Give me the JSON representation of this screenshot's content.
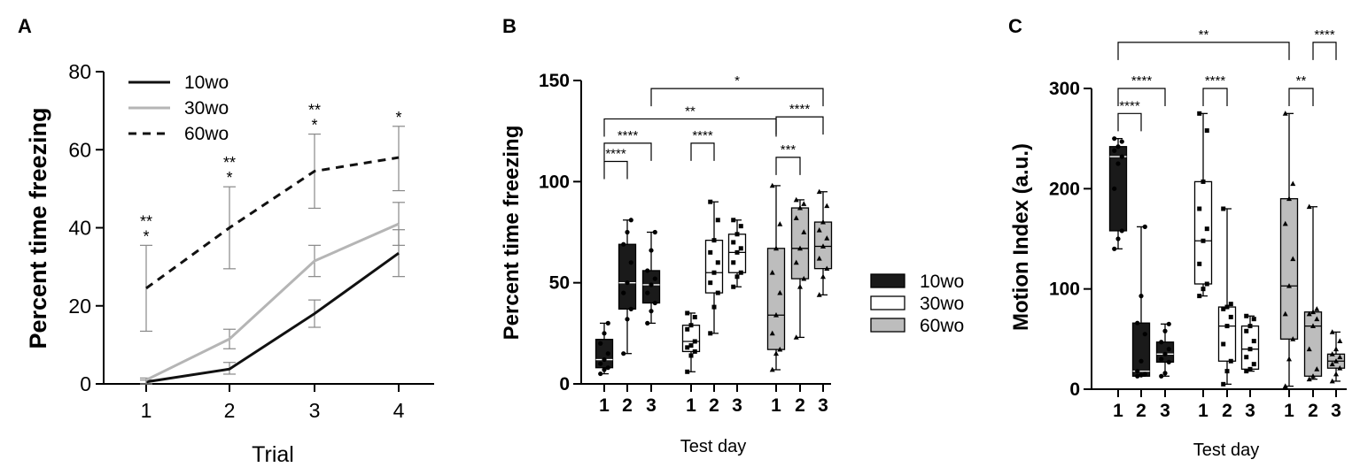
{
  "figure": {
    "panels": [
      "A",
      "B",
      "C"
    ]
  },
  "colors": {
    "10wo": "#1a1a1a",
    "30wo": "#ffffff",
    "60wo": "#bdbdbd",
    "line_30wo": "#b5b5b5",
    "errorbar": "#888888"
  },
  "chart_data": [
    {
      "panel": "A",
      "type": "line",
      "xlabel": "Trial",
      "ylabel": "Percent time freezing",
      "x": [
        1,
        2,
        3,
        4
      ],
      "xticks": [
        "1",
        "2",
        "3",
        "4"
      ],
      "ylim": [
        0,
        80
      ],
      "yticks": [
        "0",
        "20",
        "40",
        "60",
        "80"
      ],
      "legend": [
        "10wo",
        "30wo",
        "60wo"
      ],
      "legend_position": "top-left",
      "series": [
        {
          "name": "10wo",
          "style": "solid-black",
          "values": [
            0.5,
            3.8,
            18,
            33.5
          ],
          "err_low": [
            0,
            2.5,
            14.5,
            27.5
          ],
          "err_high": [
            1,
            5.5,
            21.5,
            39.5
          ]
        },
        {
          "name": "30wo",
          "style": "solid-gray",
          "values": [
            1,
            11.5,
            31.5,
            41
          ],
          "err_low": [
            0,
            9,
            27.5,
            35.5
          ],
          "err_high": [
            1.5,
            14,
            35.5,
            46.5
          ]
        },
        {
          "name": "60wo",
          "style": "dashed-black",
          "values": [
            24.5,
            40,
            54.5,
            58
          ],
          "err_low": [
            13.5,
            29.5,
            45,
            49.5
          ],
          "err_high": [
            35.5,
            50.5,
            64,
            66
          ]
        }
      ],
      "annotations": [
        {
          "x": 1,
          "lines": [
            "**",
            "*"
          ]
        },
        {
          "x": 2,
          "lines": [
            "**",
            "*"
          ]
        },
        {
          "x": 3,
          "lines": [
            "**",
            "*"
          ]
        },
        {
          "x": 4,
          "lines": [
            "*"
          ]
        }
      ]
    },
    {
      "panel": "B",
      "type": "box",
      "xlabel": "Test day",
      "ylabel": "Percent time freezing",
      "ylim": [
        0,
        150
      ],
      "yticks": [
        "0",
        "50",
        "100",
        "150"
      ],
      "legend": [
        "10wo",
        "30wo",
        "60wo"
      ],
      "legend_position": "right",
      "groups": [
        {
          "name": "10wo",
          "boxes": [
            {
              "day": "1",
              "whisker_low": 5,
              "q1": 8,
              "median": 12,
              "q3": 22,
              "whisker_high": 30,
              "points": [
                5,
                7,
                8,
                10,
                12,
                15,
                20,
                25,
                30
              ]
            },
            {
              "day": "2",
              "whisker_low": 15,
              "q1": 37,
              "median": 50,
              "q3": 69,
              "whisker_high": 81,
              "points": [
                15,
                32,
                37,
                45,
                50,
                60,
                69,
                75,
                81
              ]
            },
            {
              "day": "3",
              "whisker_low": 30,
              "q1": 40,
              "median": 49,
              "q3": 56,
              "whisker_high": 75,
              "points": [
                30,
                36,
                40,
                45,
                49,
                52,
                56,
                66,
                75
              ]
            }
          ]
        },
        {
          "name": "30wo",
          "boxes": [
            {
              "day": "1",
              "whisker_low": 6,
              "q1": 16,
              "median": 21,
              "q3": 29,
              "whisker_high": 35,
              "points": [
                6,
                14,
                16,
                18,
                19,
                21,
                27,
                29,
                33,
                35
              ]
            },
            {
              "day": "2",
              "whisker_low": 25,
              "q1": 45,
              "median": 55,
              "q3": 71,
              "whisker_high": 90,
              "points": [
                25,
                38,
                45,
                50,
                55,
                60,
                65,
                71,
                81,
                90
              ]
            },
            {
              "day": "3",
              "whisker_low": 48,
              "q1": 55,
              "median": 65,
              "q3": 74,
              "whisker_high": 81,
              "points": [
                48,
                53,
                55,
                60,
                65,
                67,
                70,
                74,
                78,
                81
              ]
            }
          ]
        },
        {
          "name": "60wo",
          "boxes": [
            {
              "day": "1",
              "whisker_low": 7,
              "q1": 17,
              "median": 34,
              "q3": 67,
              "whisker_high": 98,
              "points": [
                7,
                15,
                17,
                25,
                34,
                45,
                55,
                67,
                79,
                98
              ]
            },
            {
              "day": "2",
              "whisker_low": 23,
              "q1": 52,
              "median": 67,
              "q3": 87,
              "whisker_high": 91,
              "points": [
                23,
                48,
                52,
                60,
                67,
                75,
                82,
                87,
                89,
                91
              ]
            },
            {
              "day": "3",
              "whisker_low": 44,
              "q1": 57,
              "median": 68,
              "q3": 80,
              "whisker_high": 95,
              "points": [
                44,
                53,
                57,
                62,
                68,
                72,
                76,
                80,
                88,
                95
              ]
            }
          ]
        }
      ],
      "significance": [
        {
          "from": 0,
          "to": 1,
          "level": 110,
          "label": "****"
        },
        {
          "from": 0,
          "to": 2,
          "level": 119,
          "label": "****"
        },
        {
          "from": 3,
          "to": 4,
          "level": 119,
          "label": "****"
        },
        {
          "from": 6,
          "to": 7,
          "level": 112,
          "label": "***"
        },
        {
          "from": 6,
          "to": 8,
          "level": 132,
          "label": "****"
        },
        {
          "from": 0,
          "to": 6,
          "level": 131,
          "label": "**"
        },
        {
          "from": 2,
          "to": 8,
          "level": 146,
          "label": "*"
        }
      ]
    },
    {
      "panel": "C",
      "type": "box",
      "xlabel": "Test day",
      "ylabel": "Motion Index (a.u.)",
      "ylim": [
        0,
        300
      ],
      "yticks": [
        "0",
        "100",
        "200",
        "300"
      ],
      "groups": [
        {
          "name": "10wo",
          "boxes": [
            {
              "day": "1",
              "whisker_low": 140,
              "q1": 158,
              "median": 232,
              "q3": 242,
              "whisker_high": 250,
              "points": [
                140,
                150,
                158,
                200,
                225,
                232,
                238,
                242,
                247,
                250
              ]
            },
            {
              "day": "2",
              "whisker_low": 13,
              "q1": 13,
              "median": 18,
              "q3": 66,
              "whisker_high": 162,
              "points": [
                13,
                14,
                15,
                18,
                28,
                55,
                66,
                93,
                162
              ]
            },
            {
              "day": "3",
              "whisker_low": 13,
              "q1": 27,
              "median": 35,
              "q3": 47,
              "whisker_high": 65,
              "points": [
                13,
                16,
                27,
                30,
                35,
                40,
                47,
                58,
                65
              ]
            }
          ]
        },
        {
          "name": "30wo",
          "boxes": [
            {
              "day": "1",
              "whisker_low": 93,
              "q1": 105,
              "median": 148,
              "q3": 207,
              "whisker_high": 275,
              "points": [
                93,
                100,
                105,
                125,
                148,
                160,
                180,
                207,
                258,
                275
              ]
            },
            {
              "day": "2",
              "whisker_low": 5,
              "q1": 28,
              "median": 63,
              "q3": 82,
              "whisker_high": 180,
              "points": [
                5,
                18,
                28,
                45,
                63,
                72,
                80,
                82,
                85,
                180
              ]
            },
            {
              "day": "3",
              "whisker_low": 18,
              "q1": 20,
              "median": 40,
              "q3": 63,
              "whisker_high": 73,
              "points": [
                18,
                20,
                25,
                32,
                40,
                48,
                58,
                63,
                70,
                73
              ]
            }
          ]
        },
        {
          "name": "60wo",
          "boxes": [
            {
              "day": "1",
              "whisker_low": 3,
              "q1": 50,
              "median": 103,
              "q3": 190,
              "whisker_high": 275,
              "points": [
                3,
                30,
                50,
                75,
                103,
                130,
                165,
                190,
                205,
                275
              ]
            },
            {
              "day": "2",
              "whisker_low": 10,
              "q1": 13,
              "median": 63,
              "q3": 77,
              "whisker_high": 182,
              "points": [
                10,
                13,
                20,
                40,
                63,
                70,
                75,
                77,
                80,
                182
              ]
            },
            {
              "day": "3",
              "whisker_low": 8,
              "q1": 21,
              "median": 28,
              "q3": 35,
              "whisker_high": 57,
              "points": [
                8,
                15,
                21,
                25,
                28,
                32,
                35,
                40,
                48,
                57
              ]
            }
          ]
        }
      ],
      "significance": [
        {
          "from": 0,
          "to": 1,
          "level": 275,
          "label": "****"
        },
        {
          "from": 0,
          "to": 2,
          "level": 300,
          "label": "****"
        },
        {
          "from": 3,
          "to": 4,
          "level": 300,
          "label": "****"
        },
        {
          "from": 6,
          "to": 7,
          "level": 300,
          "label": "**"
        },
        {
          "from": 0,
          "to": 6,
          "level": 346,
          "label": "**"
        },
        {
          "from": 7,
          "to": 8,
          "level": 346,
          "label": "****"
        }
      ]
    }
  ]
}
